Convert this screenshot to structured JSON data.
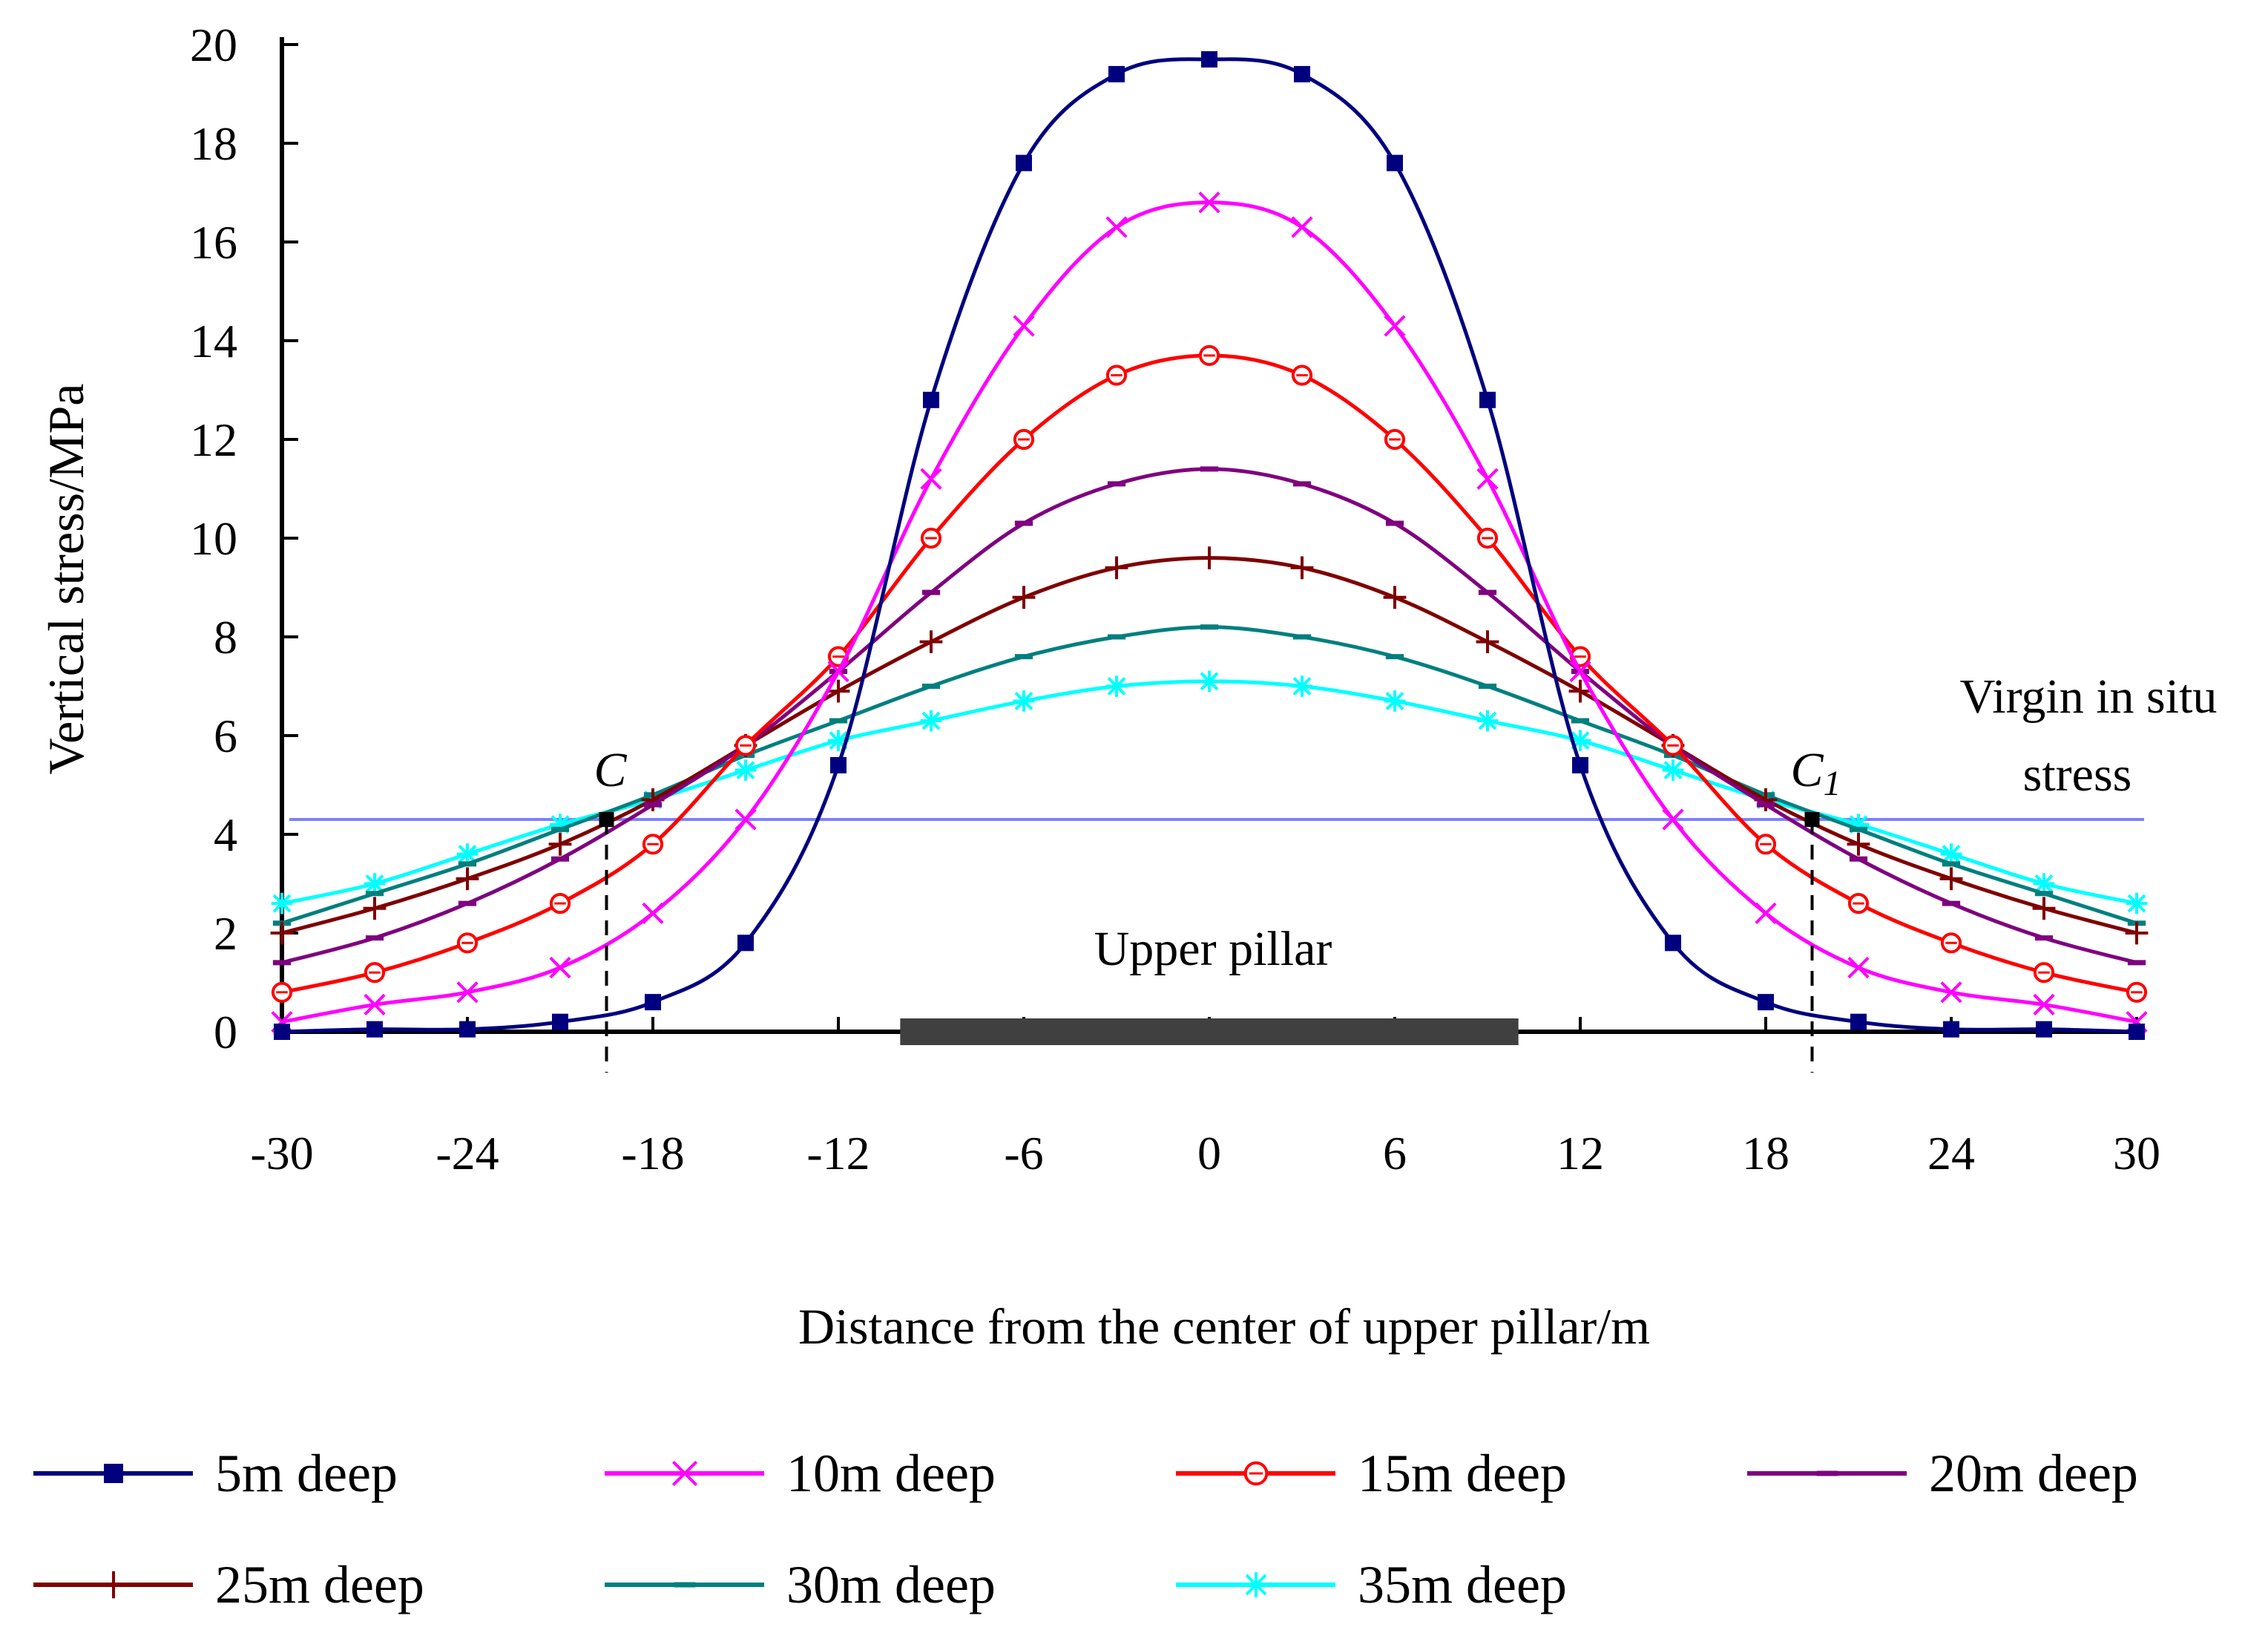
{
  "chart_data": {
    "type": "line",
    "title": "",
    "xlabel": "Distance from the center of upper pillar/m",
    "ylabel": "Vertical stress/MPa",
    "xlim": [
      -30,
      30
    ],
    "ylim": [
      0,
      20
    ],
    "x": [
      -30,
      -27,
      -24,
      -21,
      -18,
      -15,
      -12,
      -9,
      -6,
      -3,
      0,
      3,
      6,
      9,
      12,
      15,
      18,
      21,
      24,
      27,
      30
    ],
    "x_tick_labels": [
      "-30",
      "-24",
      "-18",
      "-12",
      "-6",
      "0",
      "6",
      "12",
      "18",
      "24",
      "30"
    ],
    "x_ticks": [
      -30,
      -24,
      -18,
      -12,
      -6,
      0,
      6,
      12,
      18,
      24,
      30
    ],
    "y_tick_labels": [
      "0",
      "2",
      "4",
      "6",
      "8",
      "10",
      "12",
      "14",
      "16",
      "18",
      "20"
    ],
    "y_ticks": [
      0,
      2,
      4,
      6,
      8,
      10,
      12,
      14,
      16,
      18,
      20
    ],
    "grid": false,
    "legend_position": "bottom",
    "series": [
      {
        "name": "5m deep",
        "color": "#00007f",
        "marker": "square",
        "values": [
          0.0,
          0.05,
          0.05,
          0.2,
          0.6,
          1.8,
          5.4,
          12.8,
          17.6,
          19.4,
          19.7,
          19.4,
          17.6,
          12.8,
          5.4,
          1.8,
          0.6,
          0.2,
          0.05,
          0.05,
          0.0
        ]
      },
      {
        "name": "10m deep",
        "color": "#ff00ff",
        "marker": "x",
        "values": [
          0.2,
          0.55,
          0.8,
          1.3,
          2.4,
          4.3,
          7.3,
          11.2,
          14.3,
          16.3,
          16.8,
          16.3,
          14.3,
          11.2,
          7.3,
          4.3,
          2.4,
          1.3,
          0.8,
          0.55,
          0.2
        ]
      },
      {
        "name": "15m deep",
        "color": "#ff0000",
        "marker": "circle",
        "values": [
          0.8,
          1.2,
          1.8,
          2.6,
          3.8,
          5.8,
          7.6,
          10.0,
          12.0,
          13.3,
          13.7,
          13.3,
          12.0,
          10.0,
          7.6,
          5.8,
          3.8,
          2.6,
          1.8,
          1.2,
          0.8
        ]
      },
      {
        "name": "20m deep",
        "color": "#7f007f",
        "marker": "dash",
        "values": [
          1.4,
          1.9,
          2.6,
          3.5,
          4.6,
          5.8,
          7.3,
          8.9,
          10.3,
          11.1,
          11.4,
          11.1,
          10.3,
          8.9,
          7.3,
          5.8,
          4.6,
          3.5,
          2.6,
          1.9,
          1.4
        ]
      },
      {
        "name": "25m deep",
        "color": "#7f0000",
        "marker": "plus",
        "values": [
          2.0,
          2.5,
          3.1,
          3.8,
          4.7,
          5.8,
          6.9,
          7.9,
          8.8,
          9.4,
          9.6,
          9.4,
          8.8,
          7.9,
          6.9,
          5.8,
          4.7,
          3.8,
          3.1,
          2.5,
          2.0
        ]
      },
      {
        "name": "30m deep",
        "color": "#007f7f",
        "marker": "dash",
        "values": [
          2.2,
          2.8,
          3.4,
          4.1,
          4.8,
          5.6,
          6.3,
          7.0,
          7.6,
          8.0,
          8.2,
          8.0,
          7.6,
          7.0,
          6.3,
          5.6,
          4.8,
          4.1,
          3.4,
          2.8,
          2.2
        ]
      },
      {
        "name": "35m deep",
        "color": "#00ffff",
        "marker": "asterisk",
        "values": [
          2.6,
          3.0,
          3.6,
          4.2,
          4.7,
          5.3,
          5.9,
          6.3,
          6.7,
          7.0,
          7.1,
          7.0,
          6.7,
          6.3,
          5.9,
          5.3,
          4.7,
          4.2,
          3.6,
          3.0,
          2.6
        ]
      }
    ],
    "reference_line": {
      "label_line1": "Virgin in situ",
      "label_line2": "stress",
      "value": 4.3,
      "color": "#7f7fff"
    },
    "markers": [
      {
        "label": "C",
        "x": -19.5,
        "y": 4.3
      },
      {
        "label": "C",
        "subscript": "1",
        "x": 19.5,
        "y": 4.3
      }
    ],
    "pillar": {
      "label": "Upper pillar",
      "x_start": -10,
      "x_end": 10,
      "color": "#404040"
    }
  }
}
